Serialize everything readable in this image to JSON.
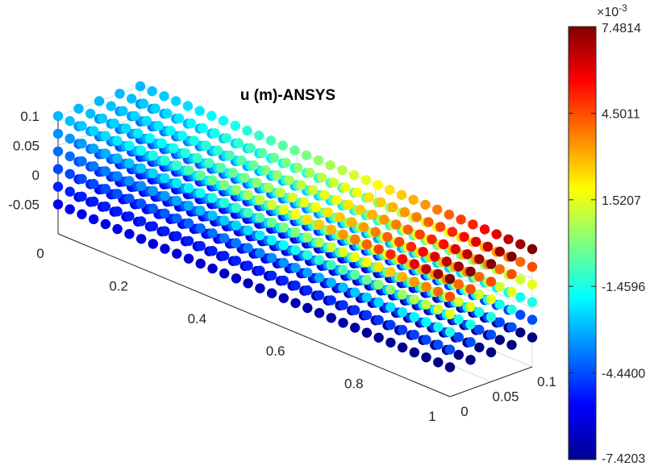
{
  "chart_data": {
    "type": "scatter",
    "title": "u (m)-ANSYS",
    "colormap": "jet",
    "x_ticks": [
      "0",
      "0.2",
      "0.4",
      "0.6",
      "0.8",
      "1"
    ],
    "y_ticks": [
      "0",
      "0.05",
      "0.1"
    ],
    "z_ticks": [
      "-0.05",
      "0",
      "0.05",
      "0.1"
    ],
    "x_range": [
      0,
      1
    ],
    "y_range": [
      0,
      0.1
    ],
    "z_range": [
      -0.1,
      0.1
    ],
    "colorbar": {
      "exponent_label": "×10",
      "exponent": "-3",
      "min": -7.4203,
      "max": 7.4814,
      "ticks": [
        "7.4814",
        "4.5011",
        "1.5207",
        "-1.4596",
        "-4.4400",
        "-7.4203"
      ]
    },
    "beam": {
      "x_range": [
        0,
        1
      ],
      "y_range": [
        0,
        0.1
      ],
      "z_range": [
        -0.05,
        0.1
      ],
      "nx": 34,
      "ny": 5,
      "nz": 6,
      "value_min_end": -0.9,
      "value_max_end": 7.4814,
      "value_bottom_end": -7.4203
    }
  }
}
